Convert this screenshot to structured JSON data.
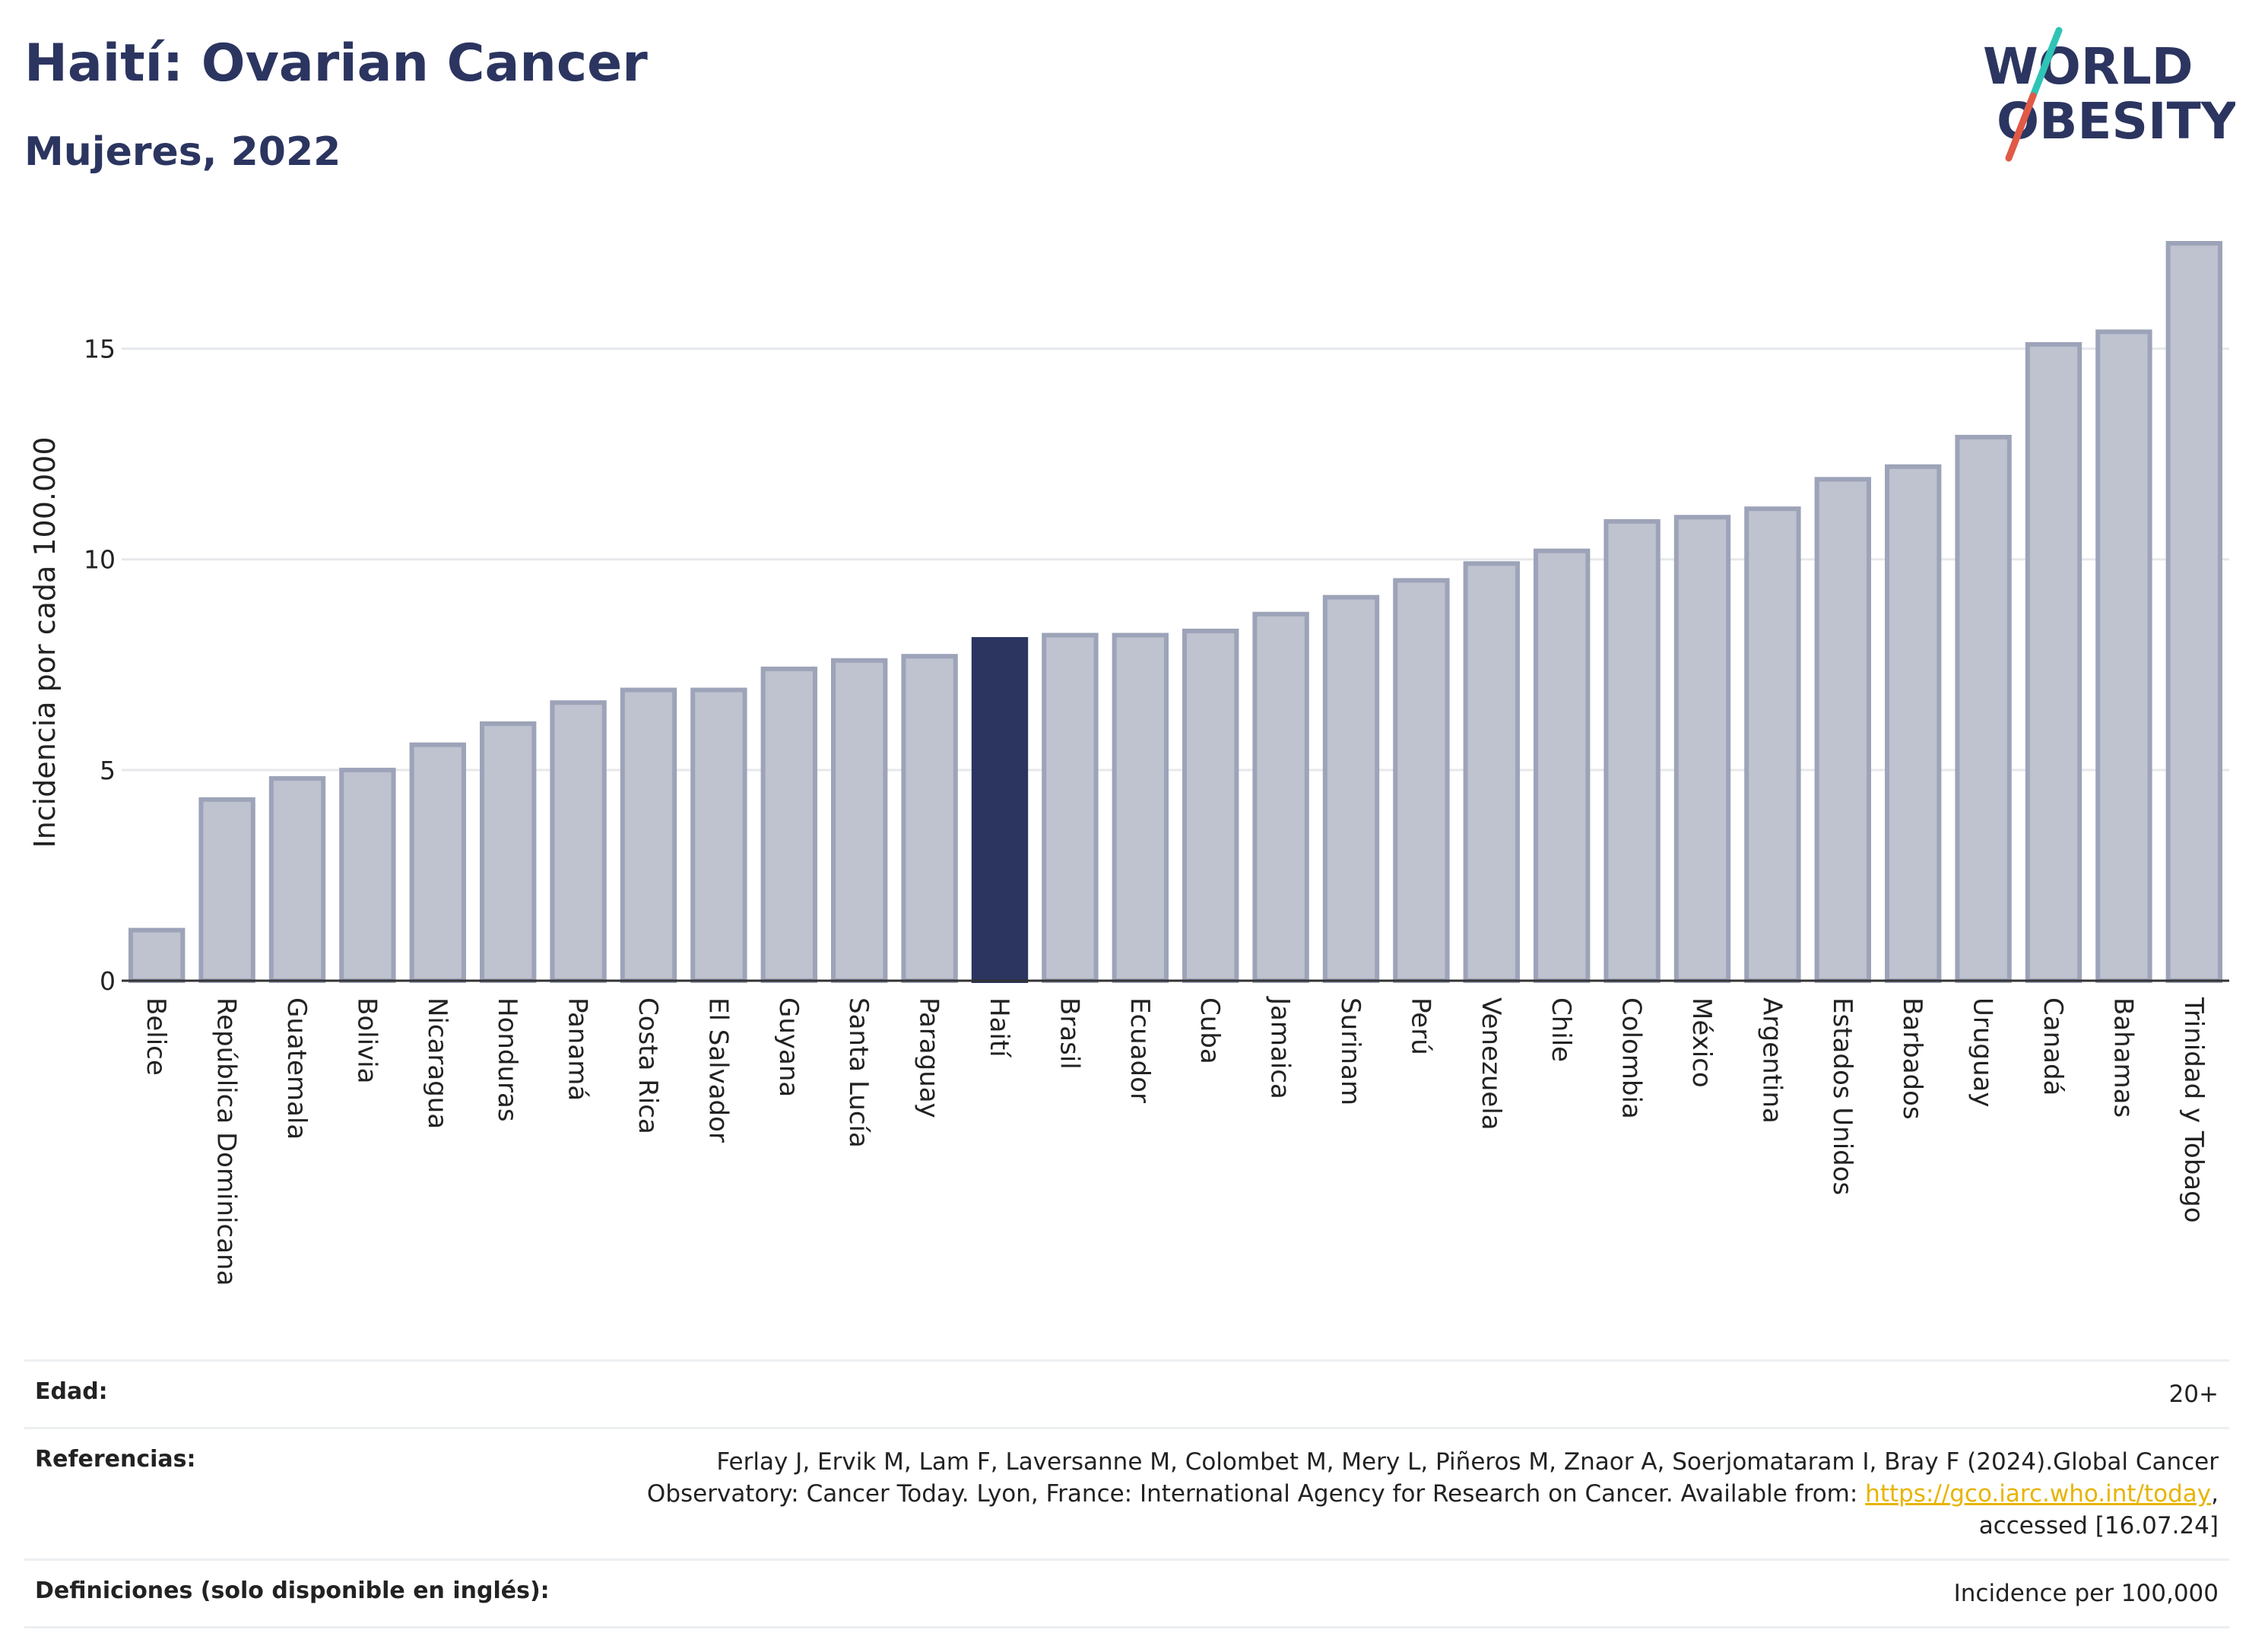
{
  "header": {
    "title": "Haití: Ovarian Cancer",
    "subtitle": "Mujeres, 2022"
  },
  "logo": {
    "line1": "WORLD",
    "line2": "OBESITY",
    "accent_colors": [
      "#2ec4b6",
      "#e05a47"
    ]
  },
  "chart_data": {
    "type": "bar",
    "ylabel": "Incidencia por cada 100.000",
    "ylim": [
      0,
      17.5
    ],
    "yticks": [
      0,
      5,
      10,
      15
    ],
    "grid": true,
    "highlight": "Haití",
    "colors": {
      "bar": "#bfc2cf",
      "bar_border": "#9da3b8",
      "highlight": "#2b3560"
    },
    "categories": [
      "Belice",
      "República Dominicana",
      "Guatemala",
      "Bolivia",
      "Nicaragua",
      "Honduras",
      "Panamá",
      "Costa Rica",
      "El Salvador",
      "Guyana",
      "Santa Lucía",
      "Paraguay",
      "Haití",
      "Brasil",
      "Ecuador",
      "Cuba",
      "Jamaica",
      "Surinam",
      "Perú",
      "Venezuela",
      "Chile",
      "Colombia",
      "México",
      "Argentina",
      "Estados Unidos",
      "Barbados",
      "Uruguay",
      "Canadá",
      "Bahamas",
      "Trinidad y Tobago"
    ],
    "values": [
      1.2,
      4.3,
      4.8,
      5.0,
      5.6,
      6.1,
      6.6,
      6.9,
      6.9,
      7.4,
      7.6,
      7.7,
      8.1,
      8.2,
      8.2,
      8.3,
      8.7,
      9.1,
      9.5,
      9.9,
      10.2,
      10.9,
      11.0,
      11.2,
      11.9,
      12.2,
      12.9,
      15.1,
      15.4,
      17.5
    ]
  },
  "footer": {
    "age_label": "Edad:",
    "age_value": "20+",
    "ref_label": "Referencias:",
    "ref_text_1": "Ferlay J, Ervik M, Lam F, Laversanne M, Colombet M, Mery L, Piñeros M, Znaor A, Soerjomataram I, Bray F (2024).Global Cancer",
    "ref_text_2": "Observatory: Cancer Today. Lyon, France: International Agency for Research on Cancer. Available from: ",
    "ref_link": "https://gco.iarc.who.int/today",
    "ref_text_3": ",",
    "ref_text_4": "accessed [16.07.24]",
    "def_label": "Definiciones (solo disponible en inglés):",
    "def_value": "Incidence per 100,000"
  }
}
